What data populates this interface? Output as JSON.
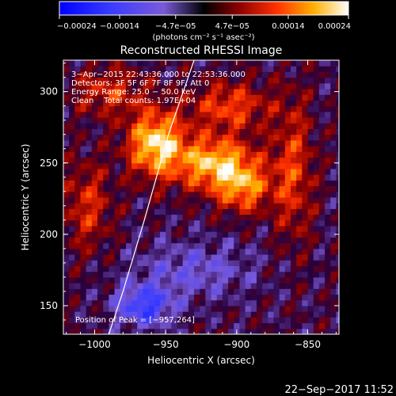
{
  "chart_data": {
    "type": "heatmap",
    "title": "Reconstructed RHESSI Image",
    "xlabel": "Heliocentric X (arcsec)",
    "ylabel": "Heliocentric Y (arcsec)",
    "xlim": [
      -1022,
      -828
    ],
    "ylim": [
      130,
      322
    ],
    "xticks": [
      -1000,
      -950,
      -900,
      -850
    ],
    "xtick_labels": [
      "−1000",
      "−950",
      "−900",
      "−850"
    ],
    "yticks": [
      150,
      200,
      250,
      300
    ],
    "ytick_labels": [
      "150",
      "200",
      "250",
      "300"
    ],
    "colorbar": {
      "min": -0.00024,
      "max": 0.00024,
      "ticks": [
        -0.00024,
        -0.00014,
        -4.7e-05,
        4.7e-05,
        0.00014,
        0.00024
      ],
      "tick_labels": [
        "−0.00024",
        "−0.00014",
        "−4.7e−05",
        "4.7e−05",
        "0.00014",
        "0.00024"
      ],
      "unit_label": "(photons cm⁻² s⁻¹ asec⁻²)"
    },
    "annotations": [
      "3−Apr−2015 22:43:36.000 to 22:53:36.000",
      "Detectors: 3F 5F 6F 7F 8F 9F, Att 0",
      "Energy Range: 25.0 − 50.0 keV",
      "Clean    Total counts: 1.97E+04"
    ],
    "peak_label": "Position of Peak = [−957,264]",
    "peak": {
      "x": -957,
      "y": 264
    },
    "limb": [
      [
        -930,
        322
      ],
      [
        -948,
        270
      ],
      [
        -965,
        210
      ],
      [
        -980,
        160
      ],
      [
        -990,
        130
      ]
    ],
    "sources": [
      {
        "x": -957,
        "y": 264,
        "sx": 14,
        "sy": 16,
        "amp": 1.0
      },
      {
        "x": -915,
        "y": 250,
        "sx": 20,
        "sy": 13,
        "amp": 0.9
      },
      {
        "x": -895,
        "y": 232,
        "sx": 14,
        "sy": 12,
        "amp": 0.65
      },
      {
        "x": -905,
        "y": 290,
        "sx": 20,
        "sy": 12,
        "amp": 0.55
      },
      {
        "x": -990,
        "y": 300,
        "sx": 18,
        "sy": 12,
        "amp": 0.45
      },
      {
        "x": -1005,
        "y": 220,
        "sx": 12,
        "sy": 22,
        "amp": 0.45
      },
      {
        "x": -860,
        "y": 245,
        "sx": 10,
        "sy": 35,
        "amp": 0.5
      },
      {
        "x": -965,
        "y": 150,
        "sx": 14,
        "sy": 10,
        "amp": -0.7
      },
      {
        "x": -930,
        "y": 175,
        "sx": 30,
        "sy": 14,
        "amp": -0.35
      }
    ],
    "grid": false
  },
  "footer": {
    "timestamp": "22−Sep−2017 11:52"
  }
}
